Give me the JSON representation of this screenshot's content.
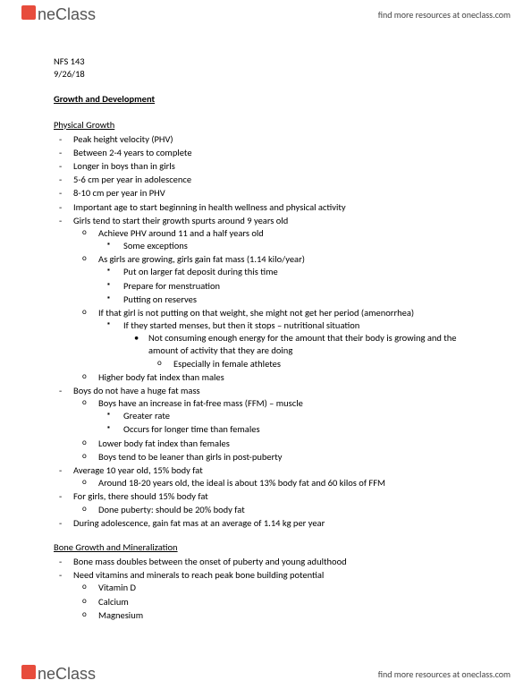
{
  "brand": {
    "name": "neClass",
    "tagline": "find more resources at oneclass.com"
  },
  "meta": {
    "course": "NFS 143",
    "date": "9/26/18"
  },
  "title": "Growth and Development",
  "sections": [
    {
      "heading": "Physical Growth",
      "items": [
        {
          "t": "Peak height velocity (PHV)"
        },
        {
          "t": "Between 2-4 years to complete"
        },
        {
          "t": "Longer in boys than in girls"
        },
        {
          "t": "5-6 cm per year in adolescence"
        },
        {
          "t": "8-10 cm per year in PHV"
        },
        {
          "t": "Important age to start beginning in health wellness and physical activity"
        },
        {
          "t": "Girls tend to start their growth spurts around 9 years old",
          "sub": [
            {
              "t": "Achieve PHV around 11 and a half years old",
              "sub": [
                {
                  "t": "Some exceptions"
                }
              ]
            },
            {
              "t": "As girls are growing, girls gain fat mass (1.14 kilo/year)",
              "sub": [
                {
                  "t": "Put on larger fat deposit during this time"
                },
                {
                  "t": "Prepare for menstruation"
                },
                {
                  "t": "Putting on reserves"
                }
              ]
            },
            {
              "t": "If that girl is not putting on that weight, she might not get her period (amenorrhea)",
              "sub": [
                {
                  "t": "If they started menses, but then it stops – nutritional situation",
                  "sub": [
                    {
                      "t": "Not consuming enough energy for the amount that their body is growing and the amount of activity that they are doing",
                      "sub": [
                        {
                          "t": "Especially in female athletes"
                        }
                      ]
                    }
                  ]
                }
              ]
            },
            {
              "t": "Higher body fat index than males"
            }
          ]
        },
        {
          "t": "Boys do not have a huge fat mass",
          "sub": [
            {
              "t": "Boys have an increase in fat-free mass (FFM) – muscle",
              "sub": [
                {
                  "t": "Greater rate"
                },
                {
                  "t": "Occurs for longer time than females"
                }
              ]
            },
            {
              "t": "Lower body fat index than females"
            },
            {
              "t": "Boys tend to be leaner than girls in post-puberty"
            }
          ]
        },
        {
          "t": "Average 10 year old, 15% body fat",
          "sub": [
            {
              "t": "Around 18-20 years old, the ideal is about 13% body fat and 60 kilos of FFM"
            }
          ]
        },
        {
          "t": "For girls, there should 15% body fat",
          "sub": [
            {
              "t": "Done puberty: should be 20% body fat"
            }
          ]
        },
        {
          "t": "During adolescence, gain fat mas at an average of 1.14 kg per year"
        }
      ]
    },
    {
      "heading": "Bone Growth and Mineralization",
      "items": [
        {
          "t": "Bone mass doubles between the onset of puberty and young adulthood"
        },
        {
          "t": "Need vitamins and minerals to reach peak bone building potential",
          "sub": [
            {
              "t": "Vitamin D"
            },
            {
              "t": "Calcium"
            },
            {
              "t": "Magnesium"
            }
          ]
        }
      ]
    }
  ]
}
